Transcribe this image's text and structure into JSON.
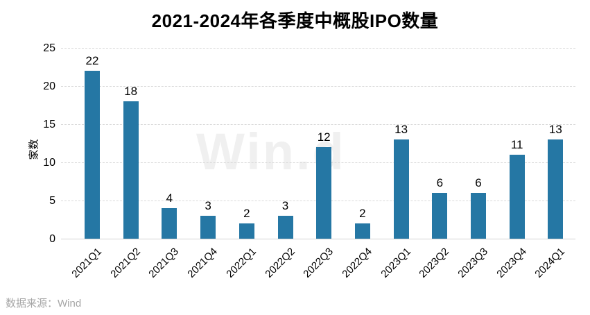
{
  "title": "2021-2024年各季度中概股IPO数量",
  "source": "数据来源：Wind",
  "watermark": "Win.d",
  "colors": {
    "bar": "#2577A4",
    "gridline": "#d9d9d9",
    "axis_line": "#d2d2d2",
    "text": "#000000",
    "source_text": "#a6a6a6",
    "watermark": "#f0f0f0"
  },
  "chart_data": {
    "type": "bar",
    "title": "2021-2024年各季度中概股IPO数量",
    "categories": [
      "2021Q1",
      "2021Q2",
      "2021Q3",
      "2021Q4",
      "2022Q1",
      "2022Q2",
      "2022Q3",
      "2022Q4",
      "2023Q1",
      "2023Q2",
      "2023Q3",
      "2023Q4",
      "2024Q1"
    ],
    "values": [
      22,
      18,
      4,
      3,
      2,
      3,
      12,
      2,
      13,
      6,
      6,
      11,
      13
    ],
    "xlabel": "",
    "ylabel": "家数",
    "ylim": [
      0,
      25
    ],
    "yticks": [
      0,
      5,
      10,
      15,
      20,
      25
    ],
    "grid": true,
    "grid_style": "dashed",
    "legend": "none",
    "data_labels": true
  }
}
